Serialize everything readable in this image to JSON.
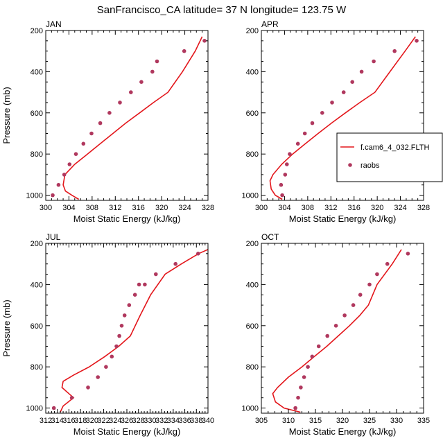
{
  "title": "SanFrancisco_CA  latitude= 37 N longitude= 123.75 W",
  "colors": {
    "model": "#e3161b",
    "obs": "#b0385e"
  },
  "legend": {
    "model": "f.cam6_4_032.FLTH",
    "obs": "raobs",
    "placement": "right of APR panel"
  },
  "chart_data": [
    {
      "type": "line",
      "panel": "JAN",
      "xlabel": "Moist Static Energy (kJ/kg)",
      "ylabel": "Pressure (mb)",
      "xlim": [
        300,
        328
      ],
      "ylim": [
        1025,
        200
      ],
      "xticks": [
        300,
        304,
        308,
        312,
        316,
        320,
        324,
        328
      ],
      "yticks": [
        200,
        400,
        600,
        800,
        1000
      ],
      "model": {
        "x": [
          305.7,
          304.5,
          303.4,
          303.0,
          303.3,
          305.0,
          307.2,
          309.4,
          311.6,
          313.8,
          316.2,
          318.6,
          321.1,
          323.6,
          325.8,
          327.0
        ],
        "y": [
          1020,
          1000,
          980,
          950,
          900,
          850,
          800,
          750,
          700,
          650,
          600,
          550,
          500,
          400,
          300,
          230
        ]
      },
      "obs": {
        "x": [
          301.2,
          302.2,
          303.2,
          304.1,
          305.2,
          306.5,
          307.9,
          309.4,
          311.0,
          312.8,
          314.7,
          316.5,
          318.4,
          319.2,
          323.9,
          327.4
        ],
        "y": [
          1000,
          950,
          900,
          850,
          800,
          750,
          700,
          650,
          600,
          550,
          500,
          450,
          400,
          350,
          300,
          250
        ]
      }
    },
    {
      "type": "line",
      "panel": "APR",
      "xlabel": "Moist Static Energy (kJ/kg)",
      "ylabel": "",
      "xlim": [
        300,
        328
      ],
      "ylim": [
        1025,
        200
      ],
      "xticks": [
        300,
        304,
        308,
        312,
        316,
        320,
        324,
        328
      ],
      "yticks": [
        200,
        400,
        600,
        800,
        1000
      ],
      "model": {
        "x": [
          303.6,
          302.4,
          301.7,
          301.5,
          302.0,
          303.5,
          305.4,
          307.6,
          309.8,
          312.1,
          314.5,
          317.0,
          319.6,
          322.2,
          324.8,
          326.6
        ],
        "y": [
          1020,
          1000,
          970,
          930,
          900,
          850,
          800,
          750,
          700,
          650,
          600,
          550,
          500,
          400,
          300,
          230
        ]
      },
      "obs": {
        "x": [
          303.6,
          303.4,
          304.1,
          304.4,
          304.9,
          306.3,
          307.5,
          308.8,
          310.5,
          312.2,
          314.2,
          315.7,
          317.3,
          319.4,
          323.0,
          326.8
        ],
        "y": [
          1000,
          950,
          900,
          850,
          800,
          750,
          700,
          650,
          600,
          550,
          500,
          450,
          400,
          350,
          300,
          250
        ]
      }
    },
    {
      "type": "line",
      "panel": "JUL",
      "xlabel": "Moist Static Energy (kJ/kg)",
      "ylabel": "Pressure (mb)",
      "xlim": [
        312,
        340
      ],
      "ylim": [
        1025,
        200
      ],
      "xticks": [
        312,
        314,
        316,
        318,
        320,
        322,
        324,
        326,
        328,
        330,
        332,
        334,
        336,
        338,
        340
      ],
      "yticks": [
        200,
        400,
        600,
        800,
        1000
      ],
      "model": {
        "x": [
          314.5,
          315.0,
          316.8,
          316.0,
          314.8,
          315.0,
          316.8,
          319.5,
          322.2,
          324.6,
          326.6,
          328.3,
          330.1,
          332.6,
          335.4,
          338.4,
          340.0
        ],
        "y": [
          1020,
          990,
          950,
          930,
          900,
          870,
          840,
          800,
          750,
          700,
          650,
          550,
          450,
          350,
          300,
          250,
          230
        ]
      },
      "obs": {
        "x": [
          313.4,
          316.5,
          319.3,
          321.0,
          322.4,
          323.4,
          324.2,
          324.7,
          325.1,
          325.6,
          326.4,
          327.4,
          328.1,
          329.1,
          331.0,
          334.4,
          338.3
        ],
        "y": [
          1000,
          950,
          900,
          850,
          800,
          750,
          700,
          650,
          600,
          550,
          500,
          450,
          400,
          400,
          350,
          300,
          250
        ]
      }
    },
    {
      "type": "line",
      "panel": "OCT",
      "xlabel": "Moist Static Energy (kJ/kg)",
      "ylabel": "",
      "xlim": [
        305,
        335
      ],
      "ylim": [
        1025,
        200
      ],
      "xticks": [
        305,
        310,
        315,
        320,
        325,
        330,
        335
      ],
      "yticks": [
        200,
        400,
        600,
        800,
        1000
      ],
      "model": {
        "x": [
          312.2,
          309.2,
          307.6,
          307.1,
          308.0,
          310.0,
          312.5,
          314.8,
          317.1,
          319.2,
          321.3,
          323.2,
          324.8,
          326.4,
          329.2,
          330.9
        ],
        "y": [
          1020,
          1000,
          970,
          930,
          900,
          850,
          800,
          750,
          700,
          650,
          600,
          550,
          500,
          400,
          300,
          230
        ]
      },
      "obs": {
        "x": [
          311.3,
          311.8,
          312.3,
          312.9,
          313.6,
          314.4,
          315.6,
          317.2,
          318.8,
          320.4,
          322.0,
          323.3,
          325.0,
          326.4,
          328.3,
          332.1
        ],
        "y": [
          1000,
          950,
          900,
          850,
          800,
          750,
          700,
          650,
          600,
          550,
          500,
          450,
          400,
          350,
          300,
          250
        ]
      }
    }
  ]
}
